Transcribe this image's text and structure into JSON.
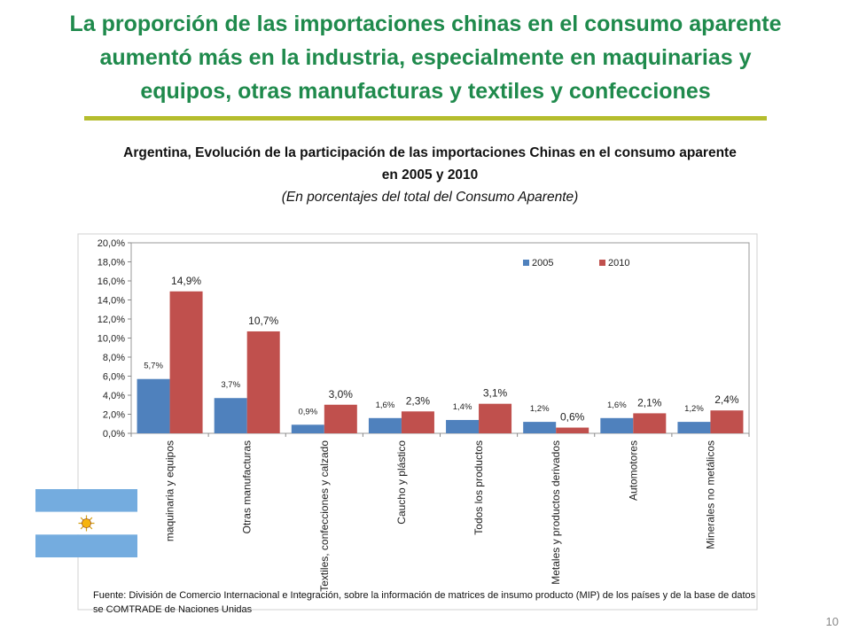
{
  "slide": {
    "title_lines": [
      "La proporción de las importaciones chinas en el consumo aparente",
      "aumentó más en la industria, especialmente en maquinarias y",
      "equipos, otras manufacturas y  textiles y confecciones"
    ],
    "source": "Fuente: División de Comercio Internacional e Integración, sobre la información de matrices de insumo producto (MIP) de los países y de la base de datos se COMTRADE de Naciones Unidas",
    "page_number": "10"
  },
  "chart_data": {
    "type": "bar",
    "title_lines": [
      "Argentina, Evolución de la participación de las importaciones Chinas en el consumo aparente",
      "en 2005 y 2010"
    ],
    "subtitle": "(En porcentajes del total del Consumo Aparente)",
    "categories": [
      "maquinaria y equipos",
      "Otras manufacturas",
      "Textiles, confecciones y calzado",
      "Caucho y plástico",
      "Todos los productos",
      "Metales y productos derivados",
      "Automotores",
      "Minerales no metálicos"
    ],
    "series": [
      {
        "name": "2005",
        "color": "#4f81bd",
        "values": [
          5.7,
          3.7,
          0.9,
          1.6,
          1.4,
          1.2,
          1.6,
          1.2
        ],
        "labels": [
          "5,7%",
          "3,7%",
          "0,9%",
          "1,6%",
          "1,4%",
          "1,2%",
          "1,6%",
          "1,2%"
        ]
      },
      {
        "name": "2010",
        "color": "#c0504d",
        "values": [
          14.9,
          10.7,
          3.0,
          2.3,
          3.1,
          0.6,
          2.1,
          2.4
        ],
        "labels": [
          "14,9%",
          "10,7%",
          "3,0%",
          "2,3%",
          "3,1%",
          "0,6%",
          "2,1%",
          "2,4%"
        ]
      }
    ],
    "ylim": [
      0,
      20
    ],
    "yticks": [
      "0,0%",
      "2,0%",
      "4,0%",
      "6,0%",
      "8,0%",
      "10,0%",
      "12,0%",
      "14,0%",
      "16,0%",
      "18,0%",
      "20,0%"
    ],
    "grid": false,
    "legend_position": "top-right"
  }
}
